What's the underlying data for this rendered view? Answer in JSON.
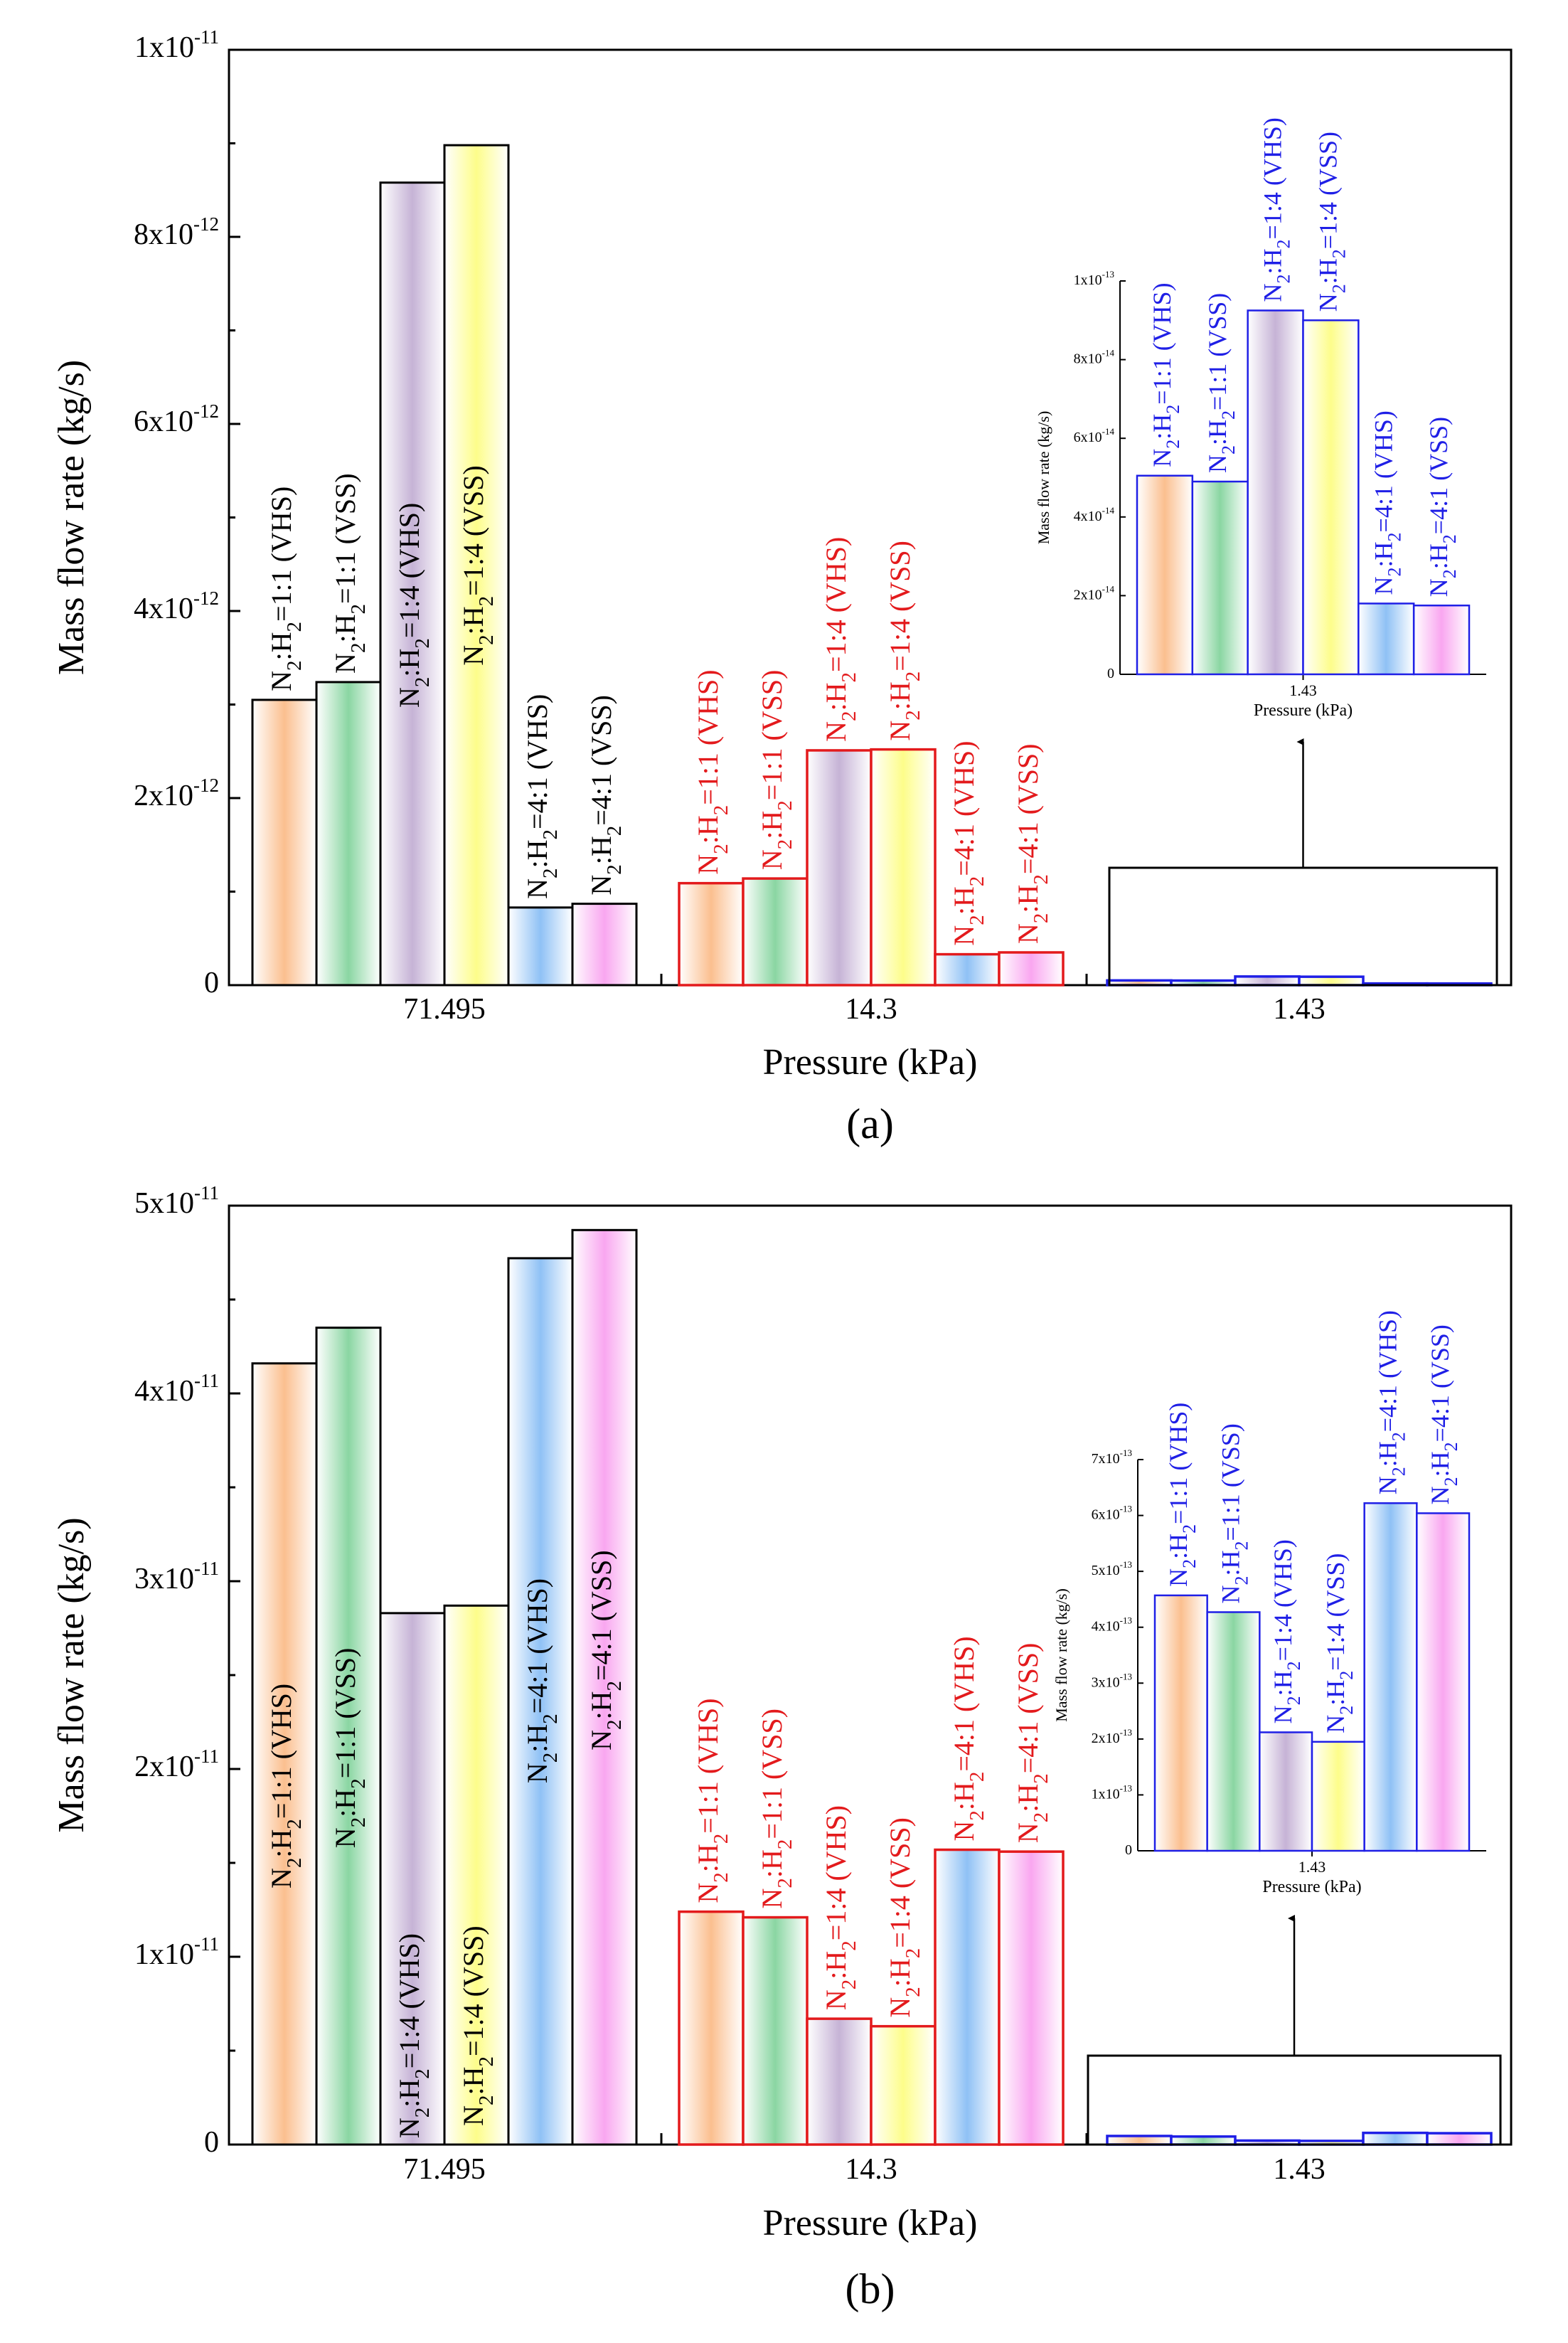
{
  "figure": {
    "colors": {
      "category_gradients": [
        "#fbbf8f",
        "#8ad6a2",
        "#c6b3d6",
        "#fdfd8a",
        "#8fc1f5",
        "#f9a6f0"
      ],
      "group_colors": [
        "#000000",
        "#e31a1c",
        "#1f1fe6"
      ]
    }
  },
  "chart_data": [
    {
      "id": "a",
      "type": "bar",
      "caption": "(a)",
      "xlabel": "Pressure (kPa)",
      "ylabel": "Mass flow rate (kg/s)",
      "ylim": [
        0,
        1e-11
      ],
      "yticks": [
        {
          "value": 0,
          "label": "0"
        },
        {
          "value": 2e-12,
          "label": "2x10",
          "exp": "-12"
        },
        {
          "value": 4e-12,
          "label": "4x10",
          "exp": "-12"
        },
        {
          "value": 6e-12,
          "label": "6x10",
          "exp": "-12"
        },
        {
          "value": 8e-12,
          "label": "8x10",
          "exp": "-12"
        },
        {
          "value": 1e-11,
          "label": "1x10",
          "exp": "-11"
        }
      ],
      "groups": [
        {
          "label": "71.495",
          "series": [
            {
              "name": "N2:H2=1:1 (VHS)",
              "ratio": "1:1",
              "model": "VHS",
              "value": 3.05e-12
            },
            {
              "name": "N2:H2=1:1 (VSS)",
              "ratio": "1:1",
              "model": "VSS",
              "value": 3.24e-12
            },
            {
              "name": "N2:H2=1:4 (VHS)",
              "ratio": "1:4",
              "model": "VHS",
              "value": 8.58e-12
            },
            {
              "name": "N2:H2=1:4 (VSS)",
              "ratio": "1:4",
              "model": "VSS",
              "value": 8.98e-12
            },
            {
              "name": "N2:H2=4:1 (VHS)",
              "ratio": "4:1",
              "model": "VHS",
              "value": 8.3e-13
            },
            {
              "name": "N2:H2=4:1 (VSS)",
              "ratio": "4:1",
              "model": "VSS",
              "value": 8.7e-13
            }
          ]
        },
        {
          "label": "14.3",
          "series": [
            {
              "name": "N2:H2=1:1 (VHS)",
              "ratio": "1:1",
              "model": "VHS",
              "value": 1.09e-12
            },
            {
              "name": "N2:H2=1:1 (VSS)",
              "ratio": "1:1",
              "model": "VSS",
              "value": 1.14e-12
            },
            {
              "name": "N2:H2=1:4 (VHS)",
              "ratio": "1:4",
              "model": "VHS",
              "value": 2.51e-12
            },
            {
              "name": "N2:H2=1:4 (VSS)",
              "ratio": "1:4",
              "model": "VSS",
              "value": 2.52e-12
            },
            {
              "name": "N2:H2=4:1 (VHS)",
              "ratio": "4:1",
              "model": "VHS",
              "value": 3.3e-13
            },
            {
              "name": "N2:H2=4:1 (VSS)",
              "ratio": "4:1",
              "model": "VSS",
              "value": 3.5e-13
            }
          ]
        },
        {
          "label": "1.43",
          "series": [
            {
              "name": "N2:H2=1:1 (VHS)",
              "ratio": "1:1",
              "model": "VHS",
              "value": 5.05e-14
            },
            {
              "name": "N2:H2=1:1 (VSS)",
              "ratio": "1:1",
              "model": "VSS",
              "value": 4.9e-14
            },
            {
              "name": "N2:H2=1:4 (VHS)",
              "ratio": "1:4",
              "model": "VHS",
              "value": 9.25e-14
            },
            {
              "name": "N2:H2=1:4 (VSS)",
              "ratio": "1:4",
              "model": "VSS",
              "value": 9e-14
            },
            {
              "name": "N2:H2=4:1 (VHS)",
              "ratio": "4:1",
              "model": "VHS",
              "value": 1.8e-14
            },
            {
              "name": "N2:H2=4:1 (VSS)",
              "ratio": "4:1",
              "model": "VSS",
              "value": 1.75e-14
            }
          ]
        }
      ],
      "inset": {
        "xlabel": "Pressure (kPa)",
        "ylabel": "Mass flow rate (kg/s)",
        "xtick": "1.43",
        "ylim": [
          0,
          1e-13
        ],
        "yticks": [
          {
            "value": 0,
            "label": "0"
          },
          {
            "value": 2e-14,
            "label": "2x10",
            "exp": "-14"
          },
          {
            "value": 4e-14,
            "label": "4x10",
            "exp": "-14"
          },
          {
            "value": 6e-14,
            "label": "6x10",
            "exp": "-14"
          },
          {
            "value": 8e-14,
            "label": "8x10",
            "exp": "-14"
          },
          {
            "value": 1e-13,
            "label": "1x10",
            "exp": "-13"
          }
        ]
      }
    },
    {
      "id": "b",
      "type": "bar",
      "caption": "(b)",
      "xlabel": "Pressure (kPa)",
      "ylabel": "Mass flow rate (kg/s)",
      "ylim": [
        0,
        5e-11
      ],
      "yticks": [
        {
          "value": 0,
          "label": "0"
        },
        {
          "value": 1e-11,
          "label": "1x10",
          "exp": "-11"
        },
        {
          "value": 2e-11,
          "label": "2x10",
          "exp": "-11"
        },
        {
          "value": 3e-11,
          "label": "3x10",
          "exp": "-11"
        },
        {
          "value": 4e-11,
          "label": "4x10",
          "exp": "-11"
        },
        {
          "value": 5e-11,
          "label": "5x10",
          "exp": "-11"
        }
      ],
      "groups": [
        {
          "label": "71.495",
          "series": [
            {
              "name": "N2:H2=1:1 (VHS)",
              "ratio": "1:1",
              "model": "VHS",
              "value": 4.16e-11
            },
            {
              "name": "N2:H2=1:1 (VSS)",
              "ratio": "1:1",
              "model": "VSS",
              "value": 4.35e-11
            },
            {
              "name": "N2:H2=1:4 (VHS)",
              "ratio": "1:4",
              "model": "VHS",
              "value": 2.83e-11
            },
            {
              "name": "N2:H2=1:4 (VSS)",
              "ratio": "1:4",
              "model": "VSS",
              "value": 2.87e-11
            },
            {
              "name": "N2:H2=4:1 (VHS)",
              "ratio": "4:1",
              "model": "VHS",
              "value": 4.72e-11
            },
            {
              "name": "N2:H2=4:1 (VSS)",
              "ratio": "4:1",
              "model": "VSS",
              "value": 4.87e-11
            }
          ]
        },
        {
          "label": "14.3",
          "series": [
            {
              "name": "N2:H2=1:1 (VHS)",
              "ratio": "1:1",
              "model": "VHS",
              "value": 1.24e-11
            },
            {
              "name": "N2:H2=1:1 (VSS)",
              "ratio": "1:1",
              "model": "VSS",
              "value": 1.21e-11
            },
            {
              "name": "N2:H2=1:4 (VHS)",
              "ratio": "1:4",
              "model": "VHS",
              "value": 6.7e-12
            },
            {
              "name": "N2:H2=1:4 (VSS)",
              "ratio": "1:4",
              "model": "VSS",
              "value": 6.3e-12
            },
            {
              "name": "N2:H2=4:1 (VHS)",
              "ratio": "4:1",
              "model": "VHS",
              "value": 1.57e-11
            },
            {
              "name": "N2:H2=4:1 (VSS)",
              "ratio": "4:1",
              "model": "VSS",
              "value": 1.56e-11
            }
          ]
        },
        {
          "label": "1.43",
          "series": [
            {
              "name": "N2:H2=1:1 (VHS)",
              "ratio": "1:1",
              "model": "VHS",
              "value": 4.57e-13
            },
            {
              "name": "N2:H2=1:1 (VSS)",
              "ratio": "1:1",
              "model": "VSS",
              "value": 4.27e-13
            },
            {
              "name": "N2:H2=1:4 (VHS)",
              "ratio": "1:4",
              "model": "VHS",
              "value": 2.12e-13
            },
            {
              "name": "N2:H2=1:4 (VSS)",
              "ratio": "1:4",
              "model": "VSS",
              "value": 1.95e-13
            },
            {
              "name": "N2:H2=4:1 (VHS)",
              "ratio": "4:1",
              "model": "VHS",
              "value": 6.22e-13
            },
            {
              "name": "N2:H2=4:1 (VSS)",
              "ratio": "4:1",
              "model": "VSS",
              "value": 6.04e-13
            }
          ]
        }
      ],
      "inset": {
        "xlabel": "Pressure (kPa)",
        "ylabel": "Mass flow rate (kg/s)",
        "xtick": "1.43",
        "ylim": [
          0,
          7e-13
        ],
        "yticks": [
          {
            "value": 0,
            "label": "0"
          },
          {
            "value": 1e-13,
            "label": "1x10",
            "exp": "-13"
          },
          {
            "value": 2e-13,
            "label": "2x10",
            "exp": "-13"
          },
          {
            "value": 3e-13,
            "label": "3x10",
            "exp": "-13"
          },
          {
            "value": 4e-13,
            "label": "4x10",
            "exp": "-13"
          },
          {
            "value": 5e-13,
            "label": "5x10",
            "exp": "-13"
          },
          {
            "value": 6e-13,
            "label": "6x10",
            "exp": "-13"
          },
          {
            "value": 7e-13,
            "label": "7x10",
            "exp": "-13"
          }
        ]
      }
    }
  ]
}
